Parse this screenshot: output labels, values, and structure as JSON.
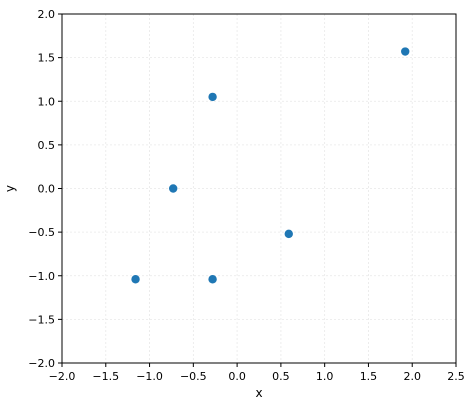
{
  "chart_data": {
    "type": "scatter",
    "title": "",
    "xlabel": "x",
    "ylabel": "y",
    "xlim": [
      -2.0,
      2.5
    ],
    "ylim": [
      -2.0,
      2.0
    ],
    "xticks": [
      -2.0,
      -1.5,
      -1.0,
      -0.5,
      0.0,
      0.5,
      1.0,
      1.5,
      2.0,
      2.5
    ],
    "xtick_labels": [
      "−2.0",
      "−1.5",
      "−1.0",
      "−0.5",
      "0.0",
      "0.5",
      "1.0",
      "1.5",
      "2.0",
      "2.5"
    ],
    "yticks": [
      -2.0,
      -1.5,
      -1.0,
      -0.5,
      0.0,
      0.5,
      1.0,
      1.5,
      2.0
    ],
    "ytick_labels": [
      "−2.0",
      "−1.5",
      "−1.0",
      "−0.5",
      "0.0",
      "0.5",
      "1.0",
      "1.5",
      "2.0"
    ],
    "grid": true,
    "color": "#1f77b4",
    "points": [
      {
        "x": -0.28,
        "y": 1.05
      },
      {
        "x": 1.92,
        "y": 1.57
      },
      {
        "x": -0.73,
        "y": 0.0
      },
      {
        "x": 0.59,
        "y": -0.52
      },
      {
        "x": -1.16,
        "y": -1.04
      },
      {
        "x": -0.28,
        "y": -1.04
      }
    ]
  }
}
